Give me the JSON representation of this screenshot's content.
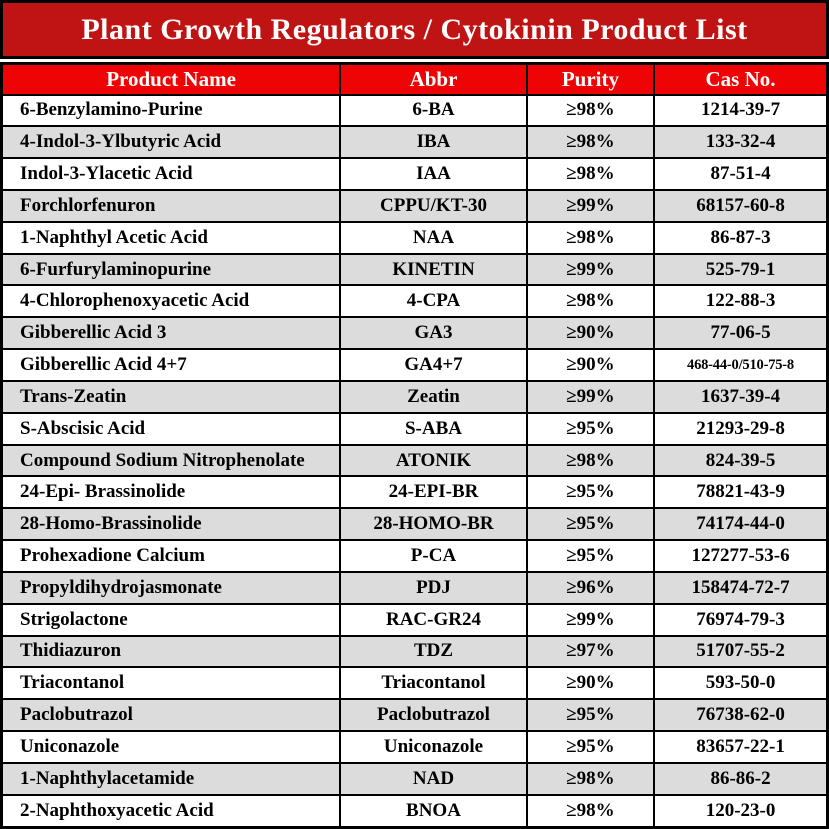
{
  "title": "Plant Growth Regulators / Cytokinin Product List",
  "colors": {
    "title_bar_bg": "#c01414",
    "header_row_bg": "#ee0404",
    "header_text": "#ffffff",
    "alt_row_bg": "#dcdcdc",
    "body_text": "#000000",
    "border": "#000000"
  },
  "table": {
    "columns": [
      "Product Name",
      "Abbr",
      "Purity",
      "Cas No."
    ],
    "rows": [
      {
        "name": "6-Benzylamino-Purine",
        "abbr": "6-BA",
        "purity": "≥98%",
        "cas": "1214-39-7"
      },
      {
        "name": "4-Indol-3-Ylbutyric Acid",
        "abbr": "IBA",
        "purity": "≥98%",
        "cas": "133-32-4"
      },
      {
        "name": "Indol-3-Ylacetic Acid",
        "abbr": "IAA",
        "purity": "≥98%",
        "cas": "87-51-4"
      },
      {
        "name": "Forchlorfenuron",
        "abbr": "CPPU/KT-30",
        "purity": "≥99%",
        "cas": "68157-60-8"
      },
      {
        "name": "1-Naphthyl Acetic Acid",
        "abbr": "NAA",
        "purity": "≥98%",
        "cas": "86-87-3"
      },
      {
        "name": "6-Furfurylaminopurine",
        "abbr": "KINETIN",
        "purity": "≥99%",
        "cas": "525-79-1"
      },
      {
        "name": "4-Chlorophenoxyacetic Acid",
        "abbr": "4-CPA",
        "purity": "≥98%",
        "cas": "122-88-3"
      },
      {
        "name": "Gibberellic Acid 3",
        "abbr": "GA3",
        "purity": "≥90%",
        "cas": "77-06-5"
      },
      {
        "name": "Gibberellic Acid 4+7",
        "abbr": "GA4+7",
        "purity": "≥90%",
        "cas": "468-44-0/510-75-8"
      },
      {
        "name": "Trans-Zeatin",
        "abbr": "Zeatin",
        "purity": "≥99%",
        "cas": "1637-39-4"
      },
      {
        "name": "S-Abscisic Acid",
        "abbr": "S-ABA",
        "purity": "≥95%",
        "cas": "21293-29-8"
      },
      {
        "name": "Compound Sodium Nitrophenolate",
        "abbr": "ATONIK",
        "purity": "≥98%",
        "cas": "824-39-5"
      },
      {
        "name": "24-Epi- Brassinolide",
        "abbr": "24-EPI-BR",
        "purity": "≥95%",
        "cas": "78821-43-9"
      },
      {
        "name": "28-Homo-Brassinolide",
        "abbr": "28-HOMO-BR",
        "purity": "≥95%",
        "cas": "74174-44-0"
      },
      {
        "name": "Prohexadione Calcium",
        "abbr": "P-CA",
        "purity": "≥95%",
        "cas": "127277-53-6"
      },
      {
        "name": "Propyldihydrojasmonate",
        "abbr": "PDJ",
        "purity": "≥96%",
        "cas": "158474-72-7"
      },
      {
        "name": "Strigolactone",
        "abbr": "RAC-GR24",
        "purity": "≥99%",
        "cas": "76974-79-3"
      },
      {
        "name": "Thidiazuron",
        "abbr": "TDZ",
        "purity": "≥97%",
        "cas": "51707-55-2"
      },
      {
        "name": "Triacontanol",
        "abbr": "Triacontanol",
        "purity": "≥90%",
        "cas": "593-50-0"
      },
      {
        "name": "Paclobutrazol",
        "abbr": "Paclobutrazol",
        "purity": "≥95%",
        "cas": "76738-62-0"
      },
      {
        "name": "Uniconazole",
        "abbr": "Uniconazole",
        "purity": "≥95%",
        "cas": "83657-22-1"
      },
      {
        "name": "1-Naphthylacetamide",
        "abbr": "NAD",
        "purity": "≥98%",
        "cas": "86-86-2"
      },
      {
        "name": "2-Naphthoxyacetic Acid",
        "abbr": "BNOA",
        "purity": "≥98%",
        "cas": "120-23-0"
      }
    ]
  }
}
